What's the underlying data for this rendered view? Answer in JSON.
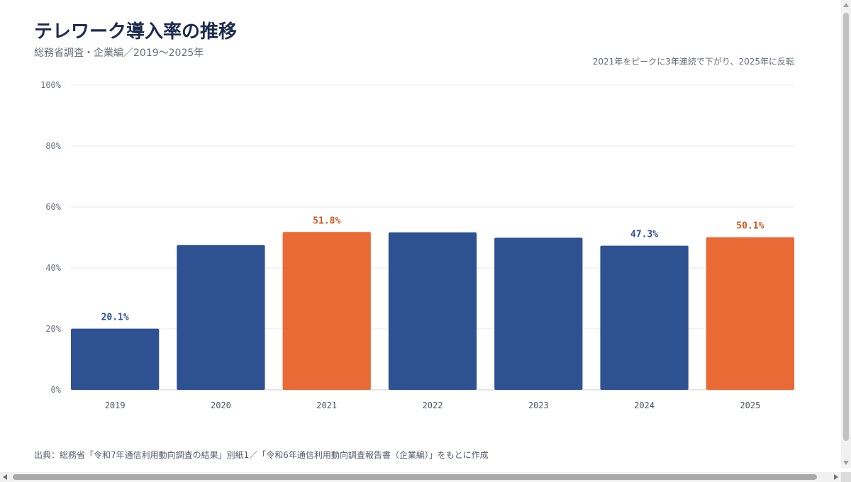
{
  "header": {
    "title": "テレワーク導入率の推移",
    "subtitle": "総務省調査・企業編／2019〜2025年",
    "note": "2021年をピークに3年連続で下がり、2025年に反転"
  },
  "footer": {
    "source": "出典：総務省「令和7年通信利用動向調査の結果」別紙1／「令和6年通信利用動向調査報告書（企業編）」をもとに作成"
  },
  "colors": {
    "normal": "#2e5191",
    "highlight": "#ea6a36",
    "grid": "#e8eaee",
    "axis_text": "#6b7280"
  },
  "chart_data": {
    "type": "bar",
    "categories": [
      "2019",
      "2020",
      "2021",
      "2022",
      "2023",
      "2024",
      "2025"
    ],
    "values": [
      20.1,
      47.5,
      51.8,
      51.7,
      49.9,
      47.3,
      50.1
    ],
    "highlight": [
      false,
      false,
      true,
      false,
      false,
      false,
      true
    ],
    "data_labels": [
      "20.1%",
      "",
      "51.8%",
      "",
      "",
      "47.3%",
      "50.1%"
    ],
    "ylim": [
      0,
      100
    ],
    "yticks": [
      0,
      20,
      40,
      60,
      80,
      100
    ],
    "ytick_labels": [
      "0%",
      "20%",
      "40%",
      "60%",
      "80%",
      "100%"
    ],
    "grid": true
  }
}
